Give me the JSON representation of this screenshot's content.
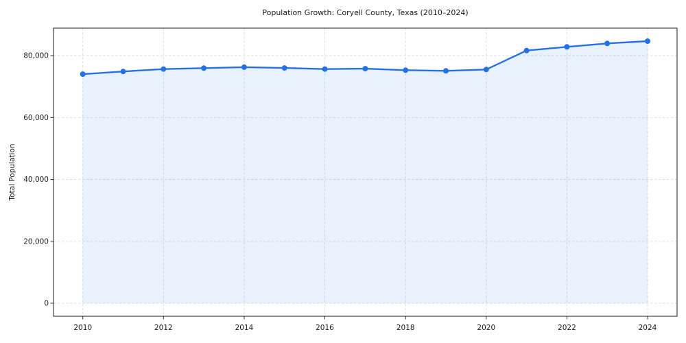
{
  "chart_data": {
    "type": "line",
    "title": "Population Growth: Coryell County, Texas (2010–2024)",
    "xlabel": "",
    "ylabel": "Total Population",
    "x": [
      2010,
      2011,
      2012,
      2013,
      2014,
      2015,
      2016,
      2017,
      2018,
      2019,
      2020,
      2021,
      2022,
      2023,
      2024
    ],
    "series": [
      {
        "name": "Total Population",
        "values": [
          74000,
          74850,
          75640,
          75950,
          76250,
          76000,
          75640,
          75760,
          75280,
          75060,
          75500,
          81620,
          82820,
          83920,
          84650
        ]
      }
    ],
    "xticks": [
      2010,
      2012,
      2014,
      2016,
      2018,
      2020,
      2022,
      2024
    ],
    "yticks": [
      0,
      20000,
      40000,
      60000,
      80000
    ],
    "ytick_labels": [
      "0",
      "20,000",
      "40,000",
      "60,000",
      "80,000"
    ],
    "xlim": [
      2009.3,
      2024.7
    ],
    "ylim": [
      -4200,
      88900
    ],
    "grid": true,
    "legend": false,
    "marker": "circle",
    "colors": {
      "line": "#2571e4",
      "marker": "#2571e4",
      "fill": "rgba(37,113,228,0.10)",
      "grid": "#d9dce1",
      "axis": "#1a1a1a",
      "text": "#1a1a1a",
      "background": "#ffffff"
    }
  }
}
